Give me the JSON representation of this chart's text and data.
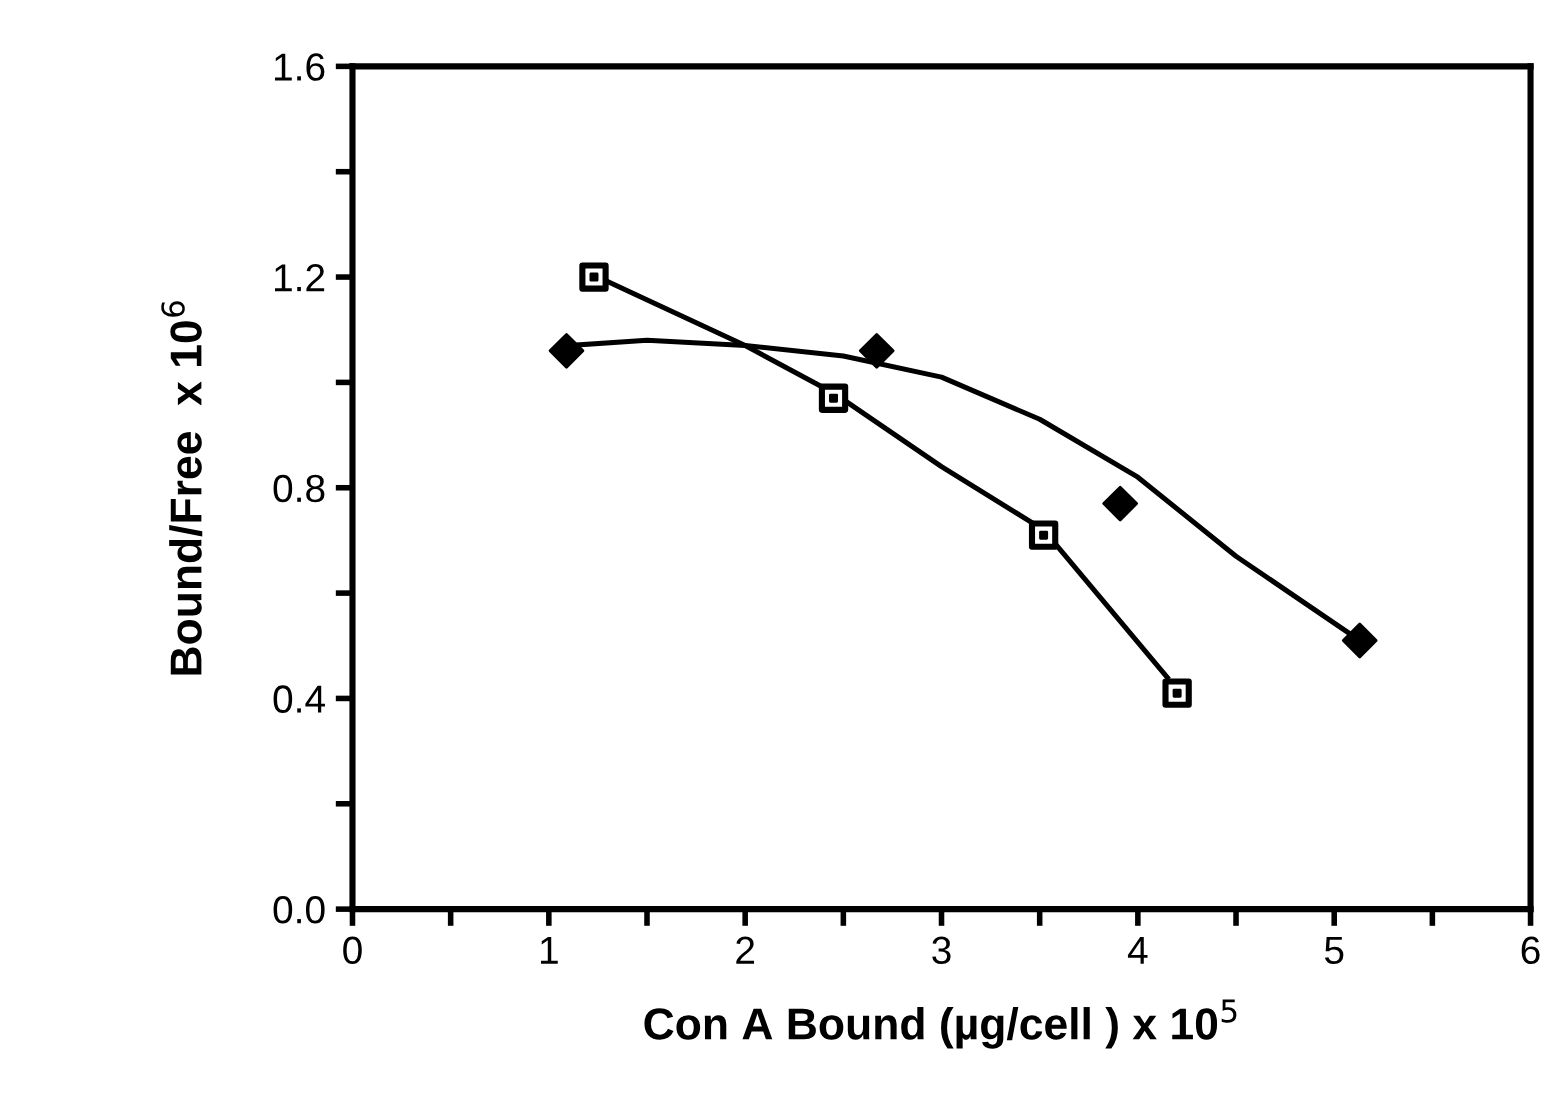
{
  "chart_data": {
    "type": "scatter",
    "xlabel": "Con A Bound (µg/cell ) x 10$^{5}$",
    "ylabel": "Bound/Free  x 10$^{6}$",
    "xlim": [
      0,
      6
    ],
    "ylim": [
      0.0,
      1.6
    ],
    "xticks": [
      0,
      {
        "value": 0.5,
        "label": null
      },
      1,
      {
        "value": 1.5,
        "label": null
      },
      2,
      {
        "value": 2.5,
        "label": null
      },
      3,
      {
        "value": 3.5,
        "label": null
      },
      4,
      {
        "value": 4.5,
        "label": null
      },
      5,
      {
        "value": 5.5,
        "label": null
      },
      6
    ],
    "yticks": [
      {
        "value": 0.0,
        "label": "0.0"
      },
      {
        "value": 0.2,
        "label": null
      },
      {
        "value": 0.4,
        "label": "0.4"
      },
      {
        "value": 0.6,
        "label": null
      },
      {
        "value": 0.8,
        "label": "0.8"
      },
      {
        "value": 1.0,
        "label": null
      },
      {
        "value": 1.2,
        "label": "1.2"
      },
      {
        "value": 1.4,
        "label": null
      },
      {
        "value": 1.6,
        "label": "1.6"
      }
    ],
    "grid": false,
    "legend": false,
    "series": [
      {
        "marker": "diamond",
        "color": "#000000",
        "x": [
          1.09,
          2.67,
          3.91,
          5.13
        ],
        "values": [
          1.06,
          1.06,
          0.77,
          0.51
        ]
      },
      {
        "marker": "square",
        "color": "#000000",
        "x": [
          1.23,
          2.45,
          3.52,
          4.2
        ],
        "values": [
          1.2,
          0.97,
          0.71,
          0.41
        ]
      },
      {
        "type": "line",
        "marker": "none",
        "color": "#000000",
        "x": [
          1.1,
          1.5,
          2.0,
          2.5,
          3.0,
          3.5,
          4.0,
          4.5,
          5.13
        ],
        "values": [
          1.07,
          1.08,
          1.07,
          1.05,
          1.01,
          0.93,
          0.82,
          0.67,
          0.51
        ]
      },
      {
        "type": "line",
        "marker": "none",
        "color": "#000000",
        "x": [
          1.25,
          2.0,
          2.45,
          3.0,
          3.52,
          4.15
        ],
        "values": [
          1.2,
          1.07,
          0.98,
          0.84,
          0.72,
          0.44
        ]
      }
    ]
  }
}
